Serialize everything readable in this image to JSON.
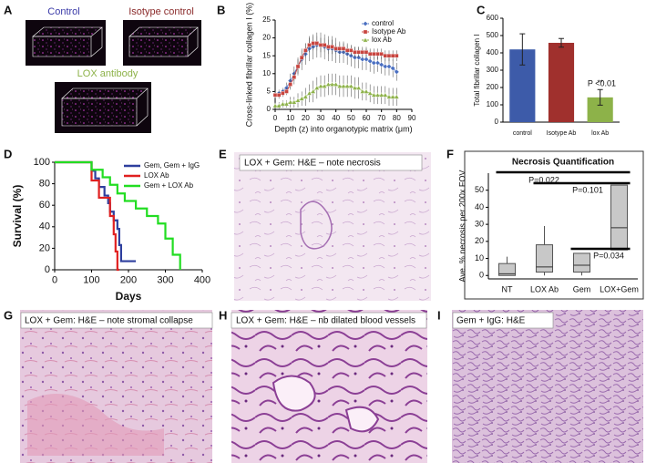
{
  "panel_letters": [
    "A",
    "B",
    "C",
    "D",
    "E",
    "F",
    "G",
    "H",
    "I"
  ],
  "panel_a": {
    "labels": [
      "Control",
      "Isotype control",
      "LOX antibody"
    ]
  },
  "captions": {
    "E": "LOX + Gem: H&E – note necrosis",
    "G": "LOX + Gem: H&E – note stromal collapse",
    "H": "LOX + Gem: H&E – nb dilated blood vessels",
    "I": "Gem + IgG: H&E"
  },
  "chart_data": [
    {
      "type": "line",
      "ylabel": "Cross-linked fibrillar collagen I (%)",
      "xlabel": "Depth (z) into organotypic matrix (μm)",
      "x": [
        0,
        2.5,
        5,
        7.5,
        10,
        12.5,
        15,
        17.5,
        20,
        22.5,
        25,
        27.5,
        30,
        32.5,
        35,
        37.5,
        40,
        42.5,
        45,
        47.5,
        50,
        52.5,
        55,
        57.5,
        60,
        62.5,
        65,
        67.5,
        70,
        72.5,
        75,
        77.5,
        80
      ],
      "series": [
        {
          "name": "control",
          "color": "#4a6fc1",
          "marker": "diamond",
          "values": [
            4,
            4.5,
            5,
            6,
            8,
            10,
            12,
            14,
            15.5,
            17,
            17.5,
            18,
            18,
            17.5,
            17,
            17,
            16.5,
            16,
            16,
            15.5,
            15,
            14.5,
            14.5,
            14,
            14,
            13.5,
            13,
            13,
            12.5,
            12,
            12,
            11.5,
            10.5
          ],
          "errors": [
            1,
            1,
            1,
            1.5,
            2,
            2,
            2.5,
            3,
            3,
            3.5,
            3.5,
            3.5,
            3.5,
            3.5,
            3.5,
            3.5,
            3.5,
            3,
            3,
            3,
            3,
            3,
            3,
            3,
            3,
            3,
            3,
            2.5,
            2.5,
            2.5,
            2.5,
            2.5,
            2.5
          ]
        },
        {
          "name": "Isotype Ab",
          "color": "#c8453f",
          "marker": "square",
          "values": [
            4,
            4,
            4.5,
            5,
            7,
            9,
            12,
            14.5,
            16.5,
            18,
            18.5,
            18.5,
            18,
            18,
            17.5,
            17.5,
            17,
            17,
            17,
            16.5,
            16.5,
            16,
            16,
            16,
            16,
            15.5,
            15.5,
            15.5,
            15.5,
            15,
            15,
            15,
            15
          ],
          "errors": [
            1,
            1,
            1,
            1,
            1.5,
            2,
            2,
            2,
            2,
            2,
            2,
            2,
            2,
            2,
            2,
            2,
            1.5,
            1.5,
            1.5,
            1.5,
            1.5,
            1.5,
            1.5,
            1.5,
            1.5,
            1.5,
            1.5,
            1.5,
            1.5,
            1.5,
            1.5,
            1.5,
            1.5
          ]
        },
        {
          "name": "lox Ab",
          "color": "#8db249",
          "marker": "triangle",
          "values": [
            1,
            1,
            1.5,
            1.5,
            2,
            2,
            2.5,
            3,
            3.5,
            4.5,
            5,
            6,
            6.5,
            6.5,
            7,
            7,
            7,
            6.5,
            6.5,
            6.5,
            6.5,
            6,
            6,
            5,
            5,
            4.5,
            4,
            4,
            4,
            4,
            3.5,
            3.5,
            3.5
          ],
          "errors": [
            1,
            1,
            1,
            1,
            1.5,
            1.5,
            2,
            2,
            2.5,
            2.5,
            3,
            3,
            3,
            3,
            3,
            3,
            3,
            3,
            3,
            3,
            3,
            3,
            3,
            2.5,
            2.5,
            2.5,
            2.5,
            2.5,
            2.5,
            2.5,
            2.5,
            2.5,
            2.5
          ]
        }
      ],
      "xlim": [
        0,
        90
      ],
      "xticks": [
        0,
        10,
        20,
        30,
        40,
        50,
        60,
        70,
        80,
        90
      ],
      "ylim": [
        0,
        25
      ],
      "yticks": [
        0,
        5,
        10,
        15,
        20,
        25
      ],
      "legend": "upper right"
    },
    {
      "type": "bar",
      "ylabel": "Total fibrillar collagen I",
      "categories": [
        "control",
        "Isotype Ab",
        "lox Ab"
      ],
      "values": [
        420,
        458,
        143
      ],
      "errors": [
        90,
        25,
        45
      ],
      "colors": [
        "#3d5ba9",
        "#a0302d",
        "#8db249"
      ],
      "ylim": [
        0,
        600
      ],
      "yticks": [
        0,
        100,
        200,
        300,
        400,
        500,
        600
      ],
      "annotations": [
        "P <0.01",
        "**"
      ]
    },
    {
      "type": "survival",
      "ylabel": "Survival (%)",
      "xlabel": "Days",
      "series": [
        {
          "name": "Gem, Gem + IgG",
          "color": "#2e3f9e",
          "x": [
            0,
            90,
            100,
            110,
            120,
            135,
            145,
            150,
            160,
            170,
            175,
            180,
            220
          ],
          "values": [
            100,
            100,
            92,
            85,
            77,
            69,
            62,
            54,
            46,
            38,
            23,
            8,
            8
          ]
        },
        {
          "name": "LOX Ab",
          "color": "#e02020",
          "x": [
            0,
            90,
            100,
            120,
            140,
            150,
            160,
            165,
            170,
            175
          ],
          "values": [
            100,
            100,
            83,
            67,
            67,
            50,
            33,
            17,
            0,
            0
          ]
        },
        {
          "name": "Gem + LOX Ab",
          "color": "#22dd22",
          "x": [
            0,
            90,
            100,
            130,
            150,
            170,
            190,
            220,
            250,
            280,
            300,
            320,
            340
          ],
          "values": [
            100,
            100,
            93,
            86,
            79,
            71,
            64,
            57,
            50,
            43,
            29,
            14,
            0
          ]
        }
      ],
      "xlim": [
        0,
        400
      ],
      "xticks": [
        0,
        100,
        200,
        300,
        400
      ],
      "ylim": [
        0,
        100
      ],
      "yticks": [
        0,
        20,
        40,
        60,
        80,
        100
      ],
      "legend": "upper right"
    },
    {
      "type": "box",
      "title": "Necrosis Quantification",
      "ylabel": "Ave. % necrosis per 200x FOV",
      "categories": [
        "NT",
        "LOX Ab",
        "Gem",
        "LOX+Gem"
      ],
      "boxes": [
        {
          "min": 0,
          "q1": 0,
          "median": 1,
          "q3": 7,
          "max": 11
        },
        {
          "min": 0,
          "q1": 2,
          "median": 5,
          "q3": 18,
          "max": 29
        },
        {
          "min": 0,
          "q1": 2,
          "median": 6,
          "q3": 13,
          "max": 13
        },
        {
          "min": 15,
          "q1": 15,
          "median": 28,
          "q3": 53,
          "max": 53
        }
      ],
      "color": "#c8c8c8",
      "ylim": [
        -2,
        60
      ],
      "yticks": [
        0,
        10,
        20,
        30,
        40,
        50
      ],
      "annotations": [
        "P=0.022",
        "P=0.101",
        "P=0.034"
      ]
    }
  ]
}
